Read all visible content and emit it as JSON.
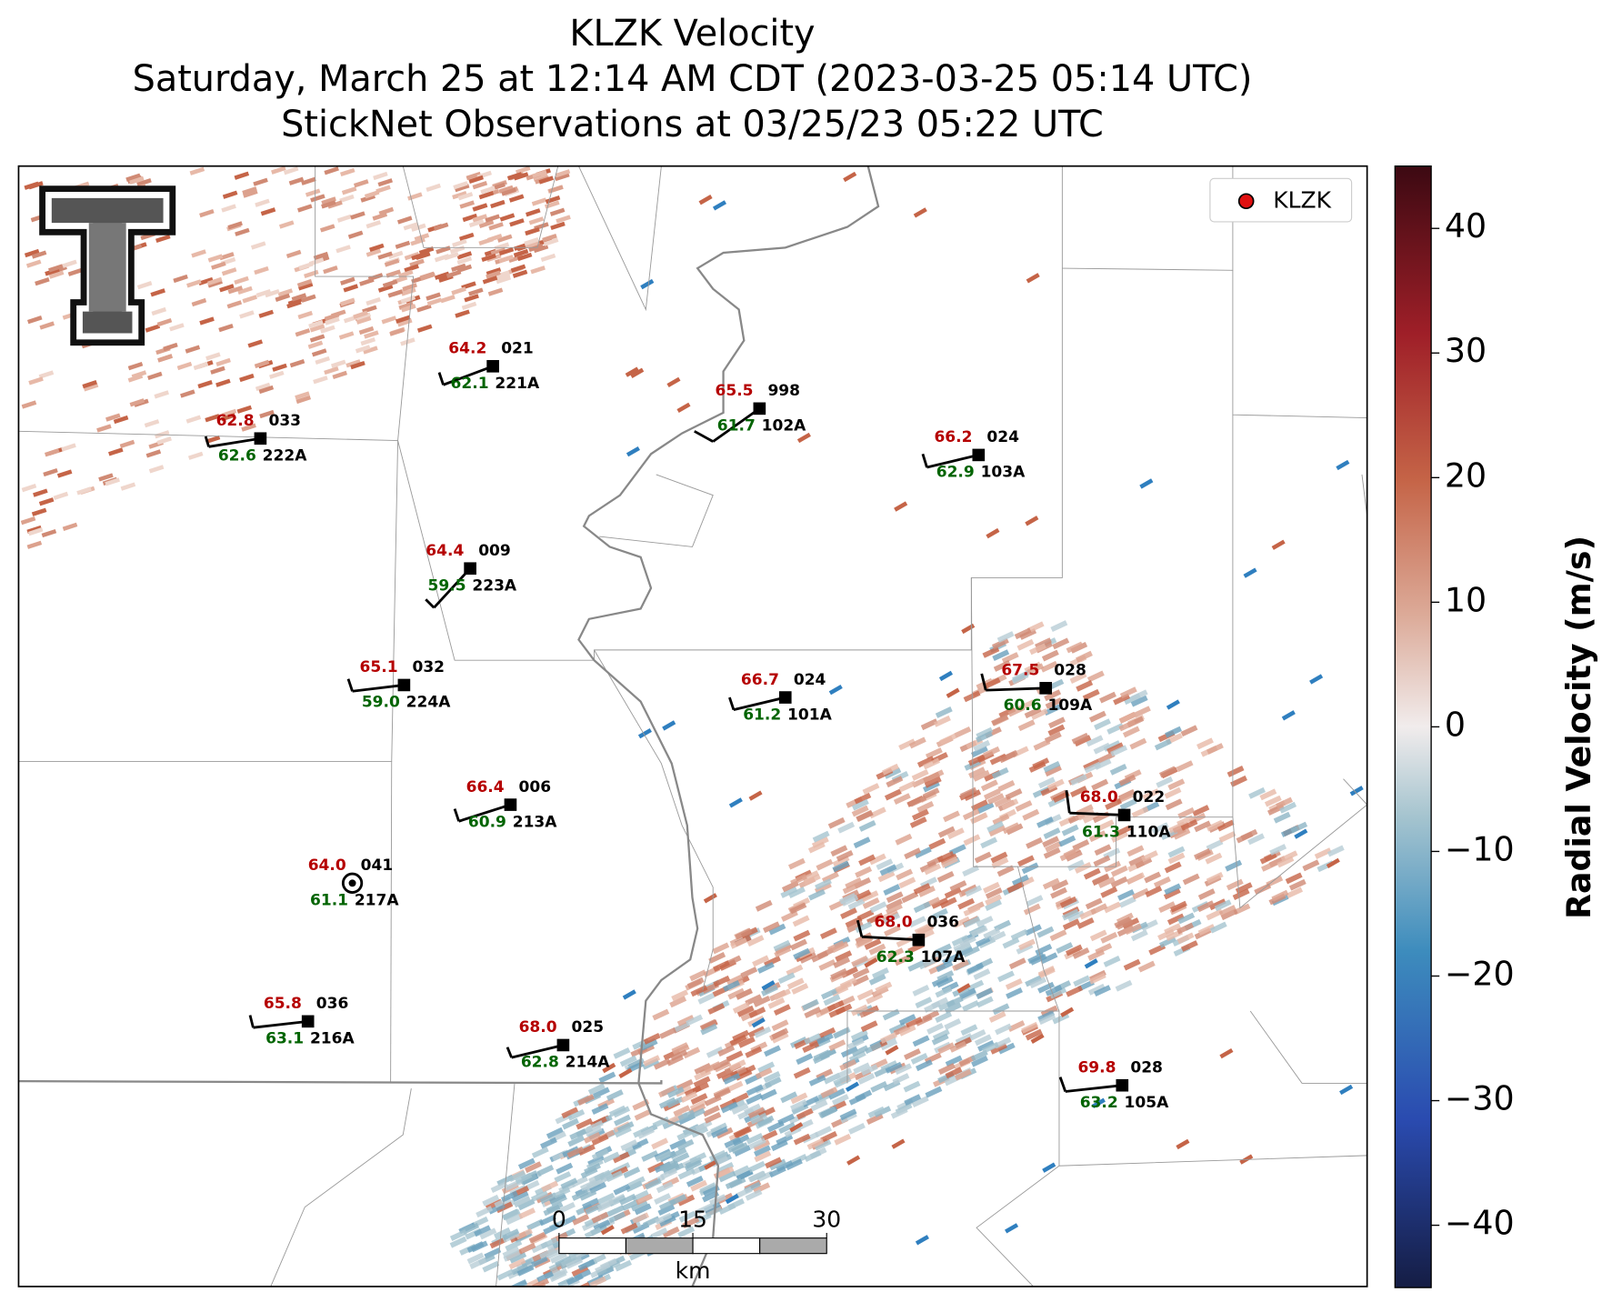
{
  "header": {
    "title": "KLZK Velocity",
    "subtitle": "Saturday, March 25 at 12:14 AM CDT (2023-03-25 05:14 UTC)",
    "observation_time": "StickNet Observations at 03/25/23 05:22 UTC"
  },
  "legend": {
    "label": "KLZK"
  },
  "colorbar": {
    "label": "Radial Velocity (m/s)",
    "lim": [
      -45,
      45
    ],
    "ticks": [
      {
        "value": -40,
        "label": "−40"
      },
      {
        "value": -30,
        "label": "−30"
      },
      {
        "value": -20,
        "label": "−20"
      },
      {
        "value": -10,
        "label": "−10"
      },
      0,
      10,
      20,
      30,
      40
    ]
  },
  "stations": [
    {
      "id": "221A",
      "temperature": "64.2",
      "dewpoint": "62.1",
      "pressure": "021"
    },
    {
      "id": "222A",
      "temperature": "62.8",
      "dewpoint": "62.6",
      "pressure": "033"
    },
    {
      "id": "102A",
      "temperature": "65.5",
      "dewpoint": "61.7",
      "pressure": "998"
    },
    {
      "id": "103A",
      "temperature": "66.2",
      "dewpoint": "62.9",
      "pressure": "024"
    },
    {
      "id": "223A",
      "temperature": "64.4",
      "dewpoint": "59.5",
      "pressure": "009"
    },
    {
      "id": "224A",
      "temperature": "65.1",
      "dewpoint": "59.0",
      "pressure": "032"
    },
    {
      "id": "101A",
      "temperature": "66.7",
      "dewpoint": "61.2",
      "pressure": "024"
    },
    {
      "id": "109A",
      "temperature": "67.5",
      "dewpoint": "60.6",
      "pressure": "028"
    },
    {
      "id": "213A",
      "temperature": "66.4",
      "dewpoint": "60.9",
      "pressure": "006"
    },
    {
      "id": "110A",
      "temperature": "68.0",
      "dewpoint": "61.3",
      "pressure": "022"
    },
    {
      "id": "217A",
      "temperature": "64.0",
      "dewpoint": "61.1",
      "pressure": "041"
    },
    {
      "id": "107A",
      "temperature": "68.0",
      "dewpoint": "62.3",
      "pressure": "036"
    },
    {
      "id": "216A",
      "temperature": "65.8",
      "dewpoint": "63.1",
      "pressure": "036"
    },
    {
      "id": "214A",
      "temperature": "68.0",
      "dewpoint": "62.8",
      "pressure": "025"
    },
    {
      "id": "105A",
      "temperature": "69.8",
      "dewpoint": "63.2",
      "pressure": "028"
    }
  ],
  "scale_bar": {
    "ticks": [
      0,
      15,
      30
    ],
    "unit": "km"
  }
}
